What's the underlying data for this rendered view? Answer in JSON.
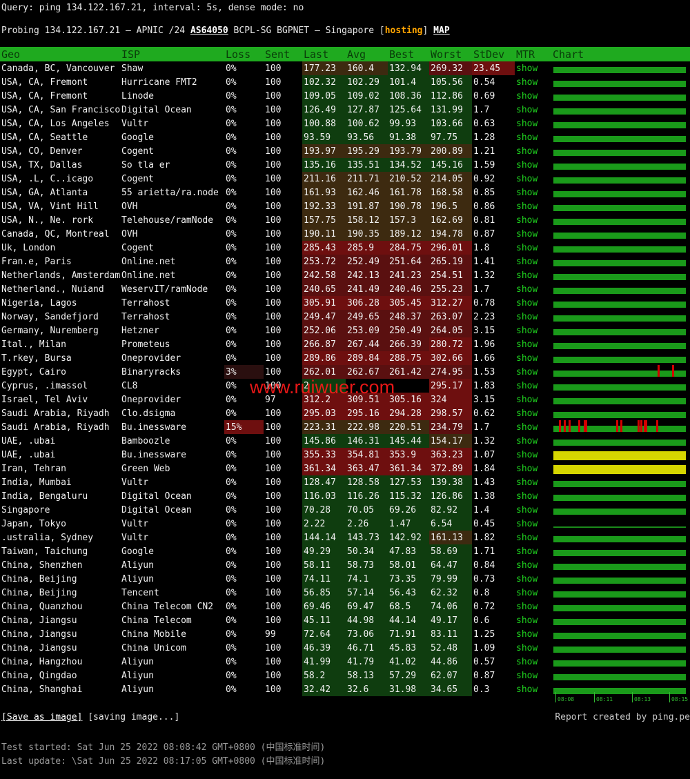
{
  "query": "Query: ping 134.122.167.21, interval: 5s, dense mode: no",
  "probing": {
    "prefix": "Probing 134.122.167.21 – APNIC /24 ",
    "asn": "AS64050",
    "middle": " BCPL-SG BGPNET – Singapore [",
    "tag": "hosting",
    "close": "] ",
    "map": "MAP"
  },
  "headers": [
    "Geo",
    "ISP",
    "Loss",
    "Sent",
    "Last",
    "Avg",
    "Best",
    "Worst",
    "StDev",
    "MTR",
    "Chart"
  ],
  "colors": {
    "header_bg": "#1faa1f",
    "good": "#0f3d0f",
    "medium": "#3d2a10",
    "bad": "#5a1010",
    "worse": "#6e0f0f",
    "link": "#1fd31f"
  },
  "rows": [
    {
      "geo": "Canada, BC, Vancouver",
      "isp": "Shaw",
      "loss": "0%",
      "sent": "100",
      "last": "177.23",
      "avg": "160.4",
      "best": "132.94",
      "worst": "269.32",
      "stdev": "23.45",
      "mtr": "show",
      "chart": "normal"
    },
    {
      "geo": "USA, CA, Fremont",
      "isp": "Hurricane FMT2",
      "loss": "0%",
      "sent": "100",
      "last": "102.32",
      "avg": "102.29",
      "best": "101.4",
      "worst": "105.56",
      "stdev": "0.54",
      "mtr": "show",
      "chart": "normal"
    },
    {
      "geo": "USA, CA, Fremont",
      "isp": "Linode",
      "loss": "0%",
      "sent": "100",
      "last": "109.05",
      "avg": "109.02",
      "best": "108.36",
      "worst": "112.86",
      "stdev": "0.69",
      "mtr": "show",
      "chart": "normal"
    },
    {
      "geo": "USA, CA, San Francisco",
      "isp": "Digital Ocean",
      "loss": "0%",
      "sent": "100",
      "last": "126.49",
      "avg": "127.87",
      "best": "125.64",
      "worst": "131.99",
      "stdev": "1.7",
      "mtr": "show",
      "chart": "normal"
    },
    {
      "geo": "USA, CA, Los Angeles",
      "isp": "Vultr",
      "loss": "0%",
      "sent": "100",
      "last": "100.88",
      "avg": "100.62",
      "best": "99.93",
      "worst": "103.66",
      "stdev": "0.63",
      "mtr": "show",
      "chart": "normal"
    },
    {
      "geo": "USA, CA, Seattle",
      "isp": "Google",
      "loss": "0%",
      "sent": "100",
      "last": "93.59",
      "avg": "93.56",
      "best": "91.38",
      "worst": "97.75",
      "stdev": "1.28",
      "mtr": "show",
      "chart": "normal"
    },
    {
      "geo": "USA, CO, Denver",
      "isp": "Cogent",
      "loss": "0%",
      "sent": "100",
      "last": "193.97",
      "avg": "195.29",
      "best": "193.79",
      "worst": "200.89",
      "stdev": "1.21",
      "mtr": "show",
      "chart": "normal"
    },
    {
      "geo": "USA, TX, Dallas",
      "isp": "So tla er",
      "loss": "0%",
      "sent": "100",
      "last": "135.16",
      "avg": "135.51",
      "best": "134.52",
      "worst": "145.16",
      "stdev": "1.59",
      "mtr": "show",
      "chart": "normal"
    },
    {
      "geo": "USA, .L, C..icago",
      "isp": "Cogent",
      "loss": "0%",
      "sent": "100",
      "last": "211.16",
      "avg": "211.71",
      "best": "210.52",
      "worst": "214.05",
      "stdev": "0.92",
      "mtr": "show",
      "chart": "normal"
    },
    {
      "geo": "USA, GA, Atlanta",
      "isp": "55  arietta/ra.node",
      "loss": "0%",
      "sent": "100",
      "last": "161.93",
      "avg": "162.46",
      "best": "161.78",
      "worst": "168.58",
      "stdev": "0.85",
      "mtr": "show",
      "chart": "normal"
    },
    {
      "geo": "USA, VA, Vint Hill",
      "isp": "OVH",
      "loss": "0%",
      "sent": "100",
      "last": "192.33",
      "avg": "191.87",
      "best": "190.78",
      "worst": "196.5",
      "stdev": "0.86",
      "mtr": "show",
      "chart": "normal"
    },
    {
      "geo": "USA, N., Ne. rork",
      "isp": "Telehouse/ramNode",
      "loss": "0%",
      "sent": "100",
      "last": "157.75",
      "avg": "158.12",
      "best": "157.3",
      "worst": "162.69",
      "stdev": "0.81",
      "mtr": "show",
      "chart": "normal"
    },
    {
      "geo": "Canada, QC, Montreal",
      "isp": "OVH",
      "loss": "0%",
      "sent": "100",
      "last": "190.11",
      "avg": "190.35",
      "best": "189.12",
      "worst": "194.78",
      "stdev": "0.87",
      "mtr": "show",
      "chart": "normal"
    },
    {
      "geo": "Uk, London",
      "isp": "Cogent",
      "loss": "0%",
      "sent": "100",
      "last": "285.43",
      "avg": "285.9",
      "best": "284.75",
      "worst": "296.01",
      "stdev": "1.8",
      "mtr": "show",
      "chart": "normal"
    },
    {
      "geo": "Fran.e, Paris",
      "isp": "Online.net",
      "loss": "0%",
      "sent": "100",
      "last": "253.72",
      "avg": "252.49",
      "best": "251.64",
      "worst": "265.19",
      "stdev": "1.41",
      "mtr": "show",
      "chart": "normal"
    },
    {
      "geo": "Netherlands, Amsterdam",
      "isp": "Online.net",
      "loss": "0%",
      "sent": "100",
      "last": "242.58",
      "avg": "242.13",
      "best": "241.23",
      "worst": "254.51",
      "stdev": "1.32",
      "mtr": "show",
      "chart": "normal"
    },
    {
      "geo": "Netherland., Nuiand",
      "isp": "WeservIT/ramNode",
      "loss": "0%",
      "sent": "100",
      "last": "240.65",
      "avg": "241.49",
      "best": "240.46",
      "worst": "255.23",
      "stdev": "1.7",
      "mtr": "show",
      "chart": "normal"
    },
    {
      "geo": "Nigeria, Lagos",
      "isp": "Terrahost",
      "loss": "0%",
      "sent": "100",
      "last": "305.91",
      "avg": "306.28",
      "best": "305.45",
      "worst": "312.27",
      "stdev": "0.78",
      "mtr": "show",
      "chart": "normal"
    },
    {
      "geo": "Norway, Sandefjord",
      "isp": "Terrahost",
      "loss": "0%",
      "sent": "100",
      "last": "249.47",
      "avg": "249.65",
      "best": "248.37",
      "worst": "263.07",
      "stdev": "2.23",
      "mtr": "show",
      "chart": "normal"
    },
    {
      "geo": "Germany, Nuremberg",
      "isp": "Hetzner",
      "loss": "0%",
      "sent": "100",
      "last": "252.06",
      "avg": "253.09",
      "best": "250.49",
      "worst": "264.05",
      "stdev": "3.15",
      "mtr": "show",
      "chart": "normal"
    },
    {
      "geo": "Ital., Milan",
      "isp": "Prometeus",
      "loss": "0%",
      "sent": "100",
      "last": "266.87",
      "avg": "267.44",
      "best": "266.39",
      "worst": "280.72",
      "stdev": "1.96",
      "mtr": "show",
      "chart": "normal"
    },
    {
      "geo": "T.rkey, Bursa",
      "isp": "Oneprovider",
      "loss": "0%",
      "sent": "100",
      "last": "289.86",
      "avg": "289.84",
      "best": "288.75",
      "worst": "302.66",
      "stdev": "1.66",
      "mtr": "show",
      "chart": "normal"
    },
    {
      "geo": "Egypt, Cairo",
      "isp": "Binaryracks",
      "loss": "3%",
      "sent": "100",
      "last": "262.01",
      "avg": "262.67",
      "best": "261.42",
      "worst": "274.95",
      "stdev": "1.53",
      "mtr": "show",
      "chart": "spikes-a"
    },
    {
      "geo": "Cyprus, .imassol",
      "isp": "CL8",
      "loss": "0%",
      "sent": "100",
      "last": "2",
      "avg": "",
      "best": "",
      "worst": "295.17",
      "stdev": "1.83",
      "mtr": "show",
      "chart": "normal"
    },
    {
      "geo": "Israel, Tel Aviv",
      "isp": "Oneprovider",
      "loss": "0%",
      "sent": "97",
      "last": "312.2",
      "avg": "309.51",
      "best": "305.16",
      "worst": "324",
      "stdev": "3.15",
      "mtr": "show",
      "chart": "normal"
    },
    {
      "geo": "Saudi Arabia, Riyadh",
      "isp": "Clo.dsigma",
      "loss": "0%",
      "sent": "100",
      "last": "295.03",
      "avg": "295.16",
      "best": "294.28",
      "worst": "298.57",
      "stdev": "0.62",
      "mtr": "show",
      "chart": "normal"
    },
    {
      "geo": "Saudi Arabia, Riyadh",
      "isp": "Bu.inessware",
      "loss": "15%",
      "sent": "100",
      "last": "223.31",
      "avg": "222.98",
      "best": "220.51",
      "worst": "234.79",
      "stdev": "1.7",
      "mtr": "show",
      "chart": "spikes-b"
    },
    {
      "geo": "UAE, .ubai",
      "isp": "Bamboozle",
      "loss": "0%",
      "sent": "100",
      "last": "145.86",
      "avg": "146.31",
      "best": "145.44",
      "worst": "154.17",
      "stdev": "1.32",
      "mtr": "show",
      "chart": "normal"
    },
    {
      "geo": "UAE, .ubai",
      "isp": "Bu.inessware",
      "loss": "0%",
      "sent": "100",
      "last": "355.33",
      "avg": "354.81",
      "best": "353.9",
      "worst": "363.23",
      "stdev": "1.07",
      "mtr": "show",
      "chart": "yellow"
    },
    {
      "geo": "Iran, Tehran",
      "isp": "Green Web",
      "loss": "0%",
      "sent": "100",
      "last": "361.34",
      "avg": "363.47",
      "best": "361.34",
      "worst": "372.89",
      "stdev": "1.84",
      "mtr": "show",
      "chart": "yellow"
    },
    {
      "geo": "India, Mumbai",
      "isp": "Vultr",
      "loss": "0%",
      "sent": "100",
      "last": "128.47",
      "avg": "128.58",
      "best": "127.53",
      "worst": "139.38",
      "stdev": "1.43",
      "mtr": "show",
      "chart": "normal"
    },
    {
      "geo": "India, Bengaluru",
      "isp": "Digital Ocean",
      "loss": "0%",
      "sent": "100",
      "last": "116.03",
      "avg": "116.26",
      "best": "115.32",
      "worst": "126.86",
      "stdev": "1.38",
      "mtr": "show",
      "chart": "normal"
    },
    {
      "geo": "Singapore",
      "isp": "Digital Ocean",
      "loss": "0%",
      "sent": "100",
      "last": "70.28",
      "avg": "70.05",
      "best": "69.26",
      "worst": "82.92",
      "stdev": "1.4",
      "mtr": "show",
      "chart": "normal"
    },
    {
      "geo": "Japan, Tokyo",
      "isp": "Vultr",
      "loss": "0%",
      "sent": "100",
      "last": "2.22",
      "avg": "2.26",
      "best": "1.47",
      "worst": "6.54",
      "stdev": "0.45",
      "mtr": "show",
      "chart": "thin"
    },
    {
      "geo": ".ustralia, Sydney",
      "isp": "Vultr",
      "loss": "0%",
      "sent": "100",
      "last": "144.14",
      "avg": "143.73",
      "best": "142.92",
      "worst": "161.13",
      "stdev": "1.82",
      "mtr": "show",
      "chart": "normal"
    },
    {
      "geo": "Taiwan, Taichung",
      "isp": "Google",
      "loss": "0%",
      "sent": "100",
      "last": "49.29",
      "avg": "50.34",
      "best": "47.83",
      "worst": "58.69",
      "stdev": "1.71",
      "mtr": "show",
      "chart": "normal"
    },
    {
      "geo": "China, Shenzhen",
      "isp": "Aliyun",
      "loss": "0%",
      "sent": "100",
      "last": "58.11",
      "avg": "58.73",
      "best": "58.01",
      "worst": "64.47",
      "stdev": "0.84",
      "mtr": "show",
      "chart": "normal"
    },
    {
      "geo": "China, Beijing",
      "isp": "Aliyun",
      "loss": "0%",
      "sent": "100",
      "last": "74.11",
      "avg": "74.1",
      "best": "73.35",
      "worst": "79.99",
      "stdev": "0.73",
      "mtr": "show",
      "chart": "normal"
    },
    {
      "geo": "China, Beijing",
      "isp": "Tencent",
      "loss": "0%",
      "sent": "100",
      "last": "56.85",
      "avg": "57.14",
      "best": "56.43",
      "worst": "62.32",
      "stdev": "0.8",
      "mtr": "show",
      "chart": "normal"
    },
    {
      "geo": "China, Quanzhou",
      "isp": "China Telecom CN2",
      "loss": "0%",
      "sent": "100",
      "last": "69.46",
      "avg": "69.47",
      "best": "68.5",
      "worst": "74.06",
      "stdev": "0.72",
      "mtr": "show",
      "chart": "normal"
    },
    {
      "geo": "China, Jiangsu",
      "isp": "China Telecom",
      "loss": "0%",
      "sent": "100",
      "last": "45.11",
      "avg": "44.98",
      "best": "44.14",
      "worst": "49.17",
      "stdev": "0.6",
      "mtr": "show",
      "chart": "normal"
    },
    {
      "geo": "China, Jiangsu",
      "isp": "China Mobile",
      "loss": "0%",
      "sent": "99",
      "last": "72.64",
      "avg": "73.06",
      "best": "71.91",
      "worst": "83.11",
      "stdev": "1.25",
      "mtr": "show",
      "chart": "normal"
    },
    {
      "geo": "China, Jiangsu",
      "isp": "China Unicom",
      "loss": "0%",
      "sent": "100",
      "last": "46.39",
      "avg": "46.71",
      "best": "45.83",
      "worst": "52.48",
      "stdev": "1.09",
      "mtr": "show",
      "chart": "normal"
    },
    {
      "geo": "China, Hangzhou",
      "isp": "Aliyun",
      "loss": "0%",
      "sent": "100",
      "last": "41.99",
      "avg": "41.79",
      "best": "41.02",
      "worst": "44.86",
      "stdev": "0.57",
      "mtr": "show",
      "chart": "normal"
    },
    {
      "geo": "China, Qingdao",
      "isp": "Aliyun",
      "loss": "0%",
      "sent": "100",
      "last": "58.2",
      "avg": "58.13",
      "best": "57.29",
      "worst": "62.07",
      "stdev": "0.87",
      "mtr": "show",
      "chart": "normal"
    },
    {
      "geo": "China, Shanghai",
      "isp": "Aliyun",
      "loss": "0%",
      "sent": "100",
      "last": "32.42",
      "avg": "32.6",
      "best": "31.98",
      "worst": "34.65",
      "stdev": "0.3",
      "mtr": "show",
      "chart": "normal"
    }
  ],
  "chart_ticks": [
    "08:08",
    "08:11",
    "08:13",
    "08:15"
  ],
  "save_button": "[Save as image]",
  "saving_text": " [saving image...]",
  "report": "Report created by ping.pe",
  "test_started": "Test started: Sat Jun 25 2022 08:08:42 GMT+0800 (中国标准时间)",
  "last_update": "Last update: \\Sat Jun 25 2022 08:17:05 GMT+0800 (中国标准时间)",
  "watermark": "www.ruiwuer.com"
}
